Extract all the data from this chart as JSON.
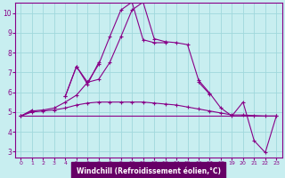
{
  "x": [
    0,
    1,
    2,
    3,
    4,
    5,
    6,
    7,
    8,
    9,
    10,
    11,
    12,
    13,
    14,
    15,
    16,
    17,
    18,
    19,
    20,
    21,
    22,
    23
  ],
  "line_spiky": [
    4.8,
    5.1,
    null,
    null,
    5.8,
    7.3,
    6.5,
    7.4,
    8.8,
    10.15,
    10.55,
    8.65,
    8.5,
    8.5,
    null,
    null,
    6.5,
    5.9,
    null,
    null,
    null,
    null,
    null,
    null
  ],
  "line_zigzag": [
    null,
    null,
    null,
    null,
    5.8,
    7.3,
    6.4,
    7.5,
    null,
    null,
    null,
    null,
    null,
    null,
    null,
    null,
    null,
    null,
    null,
    null,
    null,
    null,
    null,
    null
  ],
  "line_main": [
    4.8,
    5.05,
    5.1,
    5.2,
    5.5,
    5.85,
    6.5,
    6.65,
    7.5,
    8.8,
    10.15,
    10.55,
    8.7,
    8.55,
    8.5,
    8.4,
    6.6,
    5.95,
    5.2,
    4.8,
    5.5,
    3.55,
    2.95,
    4.8
  ],
  "line_smooth": [
    4.8,
    5.0,
    5.05,
    5.1,
    5.2,
    5.35,
    5.45,
    5.5,
    5.5,
    5.5,
    5.5,
    5.5,
    5.45,
    5.4,
    5.35,
    5.25,
    5.15,
    5.05,
    4.95,
    4.85,
    4.85,
    4.82,
    4.8,
    4.8
  ],
  "line_flat": [
    4.8,
    4.8,
    4.8,
    4.8,
    4.8,
    4.8,
    4.8,
    4.8,
    4.8,
    4.8,
    4.8,
    4.8,
    4.8,
    4.8,
    4.8,
    4.8,
    4.8,
    4.8,
    4.8,
    4.8,
    4.8,
    4.8,
    4.8,
    4.8
  ],
  "bg_color": "#c8eef0",
  "grid_color": "#a0d8dc",
  "line_color": "#880088",
  "xlabel": "Windchill (Refroidissement éolien,°C)",
  "xlabel_bg": "#660066",
  "xlabel_fg": "#ffffff",
  "ylim_min": 2.7,
  "ylim_max": 10.5,
  "xlim_min": -0.5,
  "xlim_max": 23.5,
  "yticks": [
    3,
    4,
    5,
    6,
    7,
    8,
    9,
    10
  ],
  "xticks": [
    0,
    1,
    2,
    3,
    4,
    5,
    6,
    7,
    8,
    9,
    10,
    11,
    12,
    13,
    14,
    15,
    16,
    17,
    18,
    19,
    20,
    21,
    22,
    23
  ]
}
